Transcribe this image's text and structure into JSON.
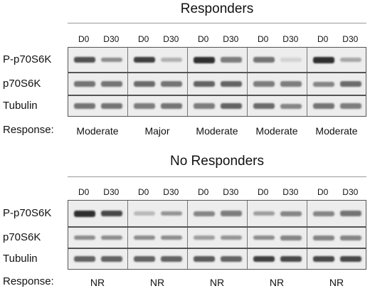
{
  "sections": [
    {
      "title": "Responders",
      "lanes": [
        "D0",
        "D30",
        "D0",
        "D30",
        "D0",
        "D30",
        "D0",
        "D30",
        "D0",
        "D30"
      ],
      "rows": [
        {
          "label": "P-p70S6K",
          "intensity_d0": [
            0.8,
            0.9,
            1.0,
            0.6,
            1.0
          ],
          "intensity_d30": [
            0.45,
            0.25,
            0.55,
            0.05,
            0.3
          ]
        },
        {
          "label": "p70S6K",
          "intensity_d0": [
            0.6,
            0.65,
            0.7,
            0.55,
            0.5
          ],
          "intensity_d30": [
            0.6,
            0.6,
            0.7,
            0.55,
            0.65
          ]
        },
        {
          "label": "Tubulin",
          "intensity_d0": [
            0.6,
            0.55,
            0.55,
            0.65,
            0.6
          ],
          "intensity_d30": [
            0.6,
            0.6,
            0.7,
            0.5,
            0.55
          ]
        }
      ],
      "response_label": "Response:",
      "responses": [
        "Moderate",
        "Major",
        "Moderate",
        "Moderate",
        "Moderate"
      ]
    },
    {
      "title": "No Responders",
      "lanes": [
        "D0",
        "D30",
        "D0",
        "D30",
        "D0",
        "D30",
        "D0",
        "D30",
        "D0",
        "D30"
      ],
      "rows": [
        {
          "label": "P-p70S6K",
          "intensity_d0": [
            1.0,
            0.2,
            0.5,
            0.35,
            0.5
          ],
          "intensity_d30": [
            0.85,
            0.4,
            0.55,
            0.5,
            0.6
          ]
        },
        {
          "label": "p70S6K",
          "intensity_d0": [
            0.45,
            0.45,
            0.35,
            0.45,
            0.5
          ],
          "intensity_d30": [
            0.45,
            0.45,
            0.4,
            0.5,
            0.5
          ]
        },
        {
          "label": "Tubulin",
          "intensity_d0": [
            0.7,
            0.7,
            0.75,
            0.9,
            0.85
          ],
          "intensity_d30": [
            0.7,
            0.7,
            0.7,
            0.85,
            0.85
          ]
        }
      ],
      "response_label": "Response:",
      "responses": [
        "NR",
        "NR",
        "NR",
        "NR",
        "NR"
      ]
    }
  ]
}
